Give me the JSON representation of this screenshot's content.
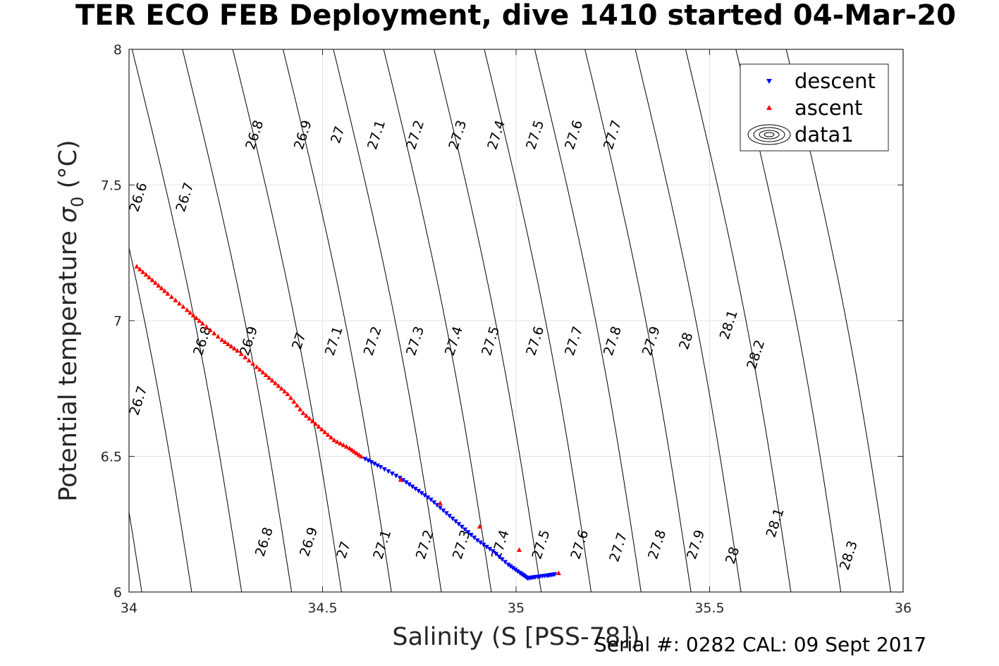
{
  "title": "TER ECO FEB Deployment, dive 1410 started 04-Mar-20",
  "footer": "Serial #: 0282  CAL: 09 Sept 2017",
  "chart_data": {
    "type": "scatter",
    "xlabel": "Salinity (S [PSS-78])",
    "ylabel": "Potential temperature",
    "ylabel_symbol": "σ",
    "ylabel_subscript": "0",
    "ylabel_unit": "(°C)",
    "xlim": [
      34,
      36
    ],
    "ylim": [
      6,
      8
    ],
    "xticks": [
      "34",
      "34.5",
      "35",
      "35.5",
      "36"
    ],
    "yticks": [
      "6",
      "6.5",
      "7",
      "7.5",
      "8"
    ],
    "grid": true,
    "legend_position": "top-right",
    "legend": [
      "descent",
      "ascent",
      "data1"
    ],
    "colors": {
      "descent": "#0000ff",
      "ascent": "#ff0000",
      "contour": "#000000",
      "grid": "#e3e3e3",
      "axis": "#262626"
    },
    "series": [
      {
        "name": "descent",
        "marker": "down-triangle",
        "color": "#0000ff",
        "points": [
          [
            34.61,
            6.49
          ],
          [
            34.65,
            6.46
          ],
          [
            34.7,
            6.42
          ],
          [
            34.74,
            6.38
          ],
          [
            34.78,
            6.34
          ],
          [
            34.82,
            6.29
          ],
          [
            34.86,
            6.24
          ],
          [
            34.9,
            6.19
          ],
          [
            34.94,
            6.15
          ],
          [
            34.98,
            6.1
          ],
          [
            35.01,
            6.07
          ],
          [
            35.03,
            6.05
          ],
          [
            35.05,
            6.055
          ],
          [
            35.08,
            6.06
          ],
          [
            35.1,
            6.065
          ]
        ]
      },
      {
        "name": "ascent",
        "marker": "up-triangle",
        "color": "#ff0000",
        "points": [
          [
            34.02,
            7.2
          ],
          [
            34.06,
            7.15
          ],
          [
            34.1,
            7.1
          ],
          [
            34.15,
            7.04
          ],
          [
            34.19,
            6.99
          ],
          [
            34.24,
            6.93
          ],
          [
            34.28,
            6.89
          ],
          [
            34.33,
            6.83
          ],
          [
            34.37,
            6.78
          ],
          [
            34.41,
            6.73
          ],
          [
            34.45,
            6.66
          ],
          [
            34.49,
            6.61
          ],
          [
            34.53,
            6.56
          ],
          [
            34.57,
            6.53
          ],
          [
            34.6,
            6.5
          ],
          [
            35.11,
            6.07
          ]
        ]
      }
    ],
    "contours": {
      "levels": [
        "26.6",
        "26.7",
        "26.8",
        "26.9",
        "27",
        "27.1",
        "27.2",
        "27.3",
        "27.4",
        "27.5",
        "27.6",
        "27.7",
        "27.8",
        "27.9",
        "28",
        "28.1",
        "28.2",
        "28.3"
      ],
      "level_values": [
        26.6,
        26.7,
        26.8,
        26.9,
        27.0,
        27.1,
        27.2,
        27.3,
        27.4,
        27.5,
        27.6,
        27.7,
        27.8,
        27.9,
        28.0,
        28.1,
        28.2,
        28.3
      ],
      "salinity_at_temp_6": [
        33.775,
        33.904,
        34.033,
        34.162,
        34.291,
        34.42,
        34.549,
        34.678,
        34.807,
        34.936,
        35.065,
        35.194,
        35.323,
        35.452,
        35.581,
        35.71,
        35.839,
        35.968
      ],
      "salinity_at_temp_8": [
        33.488,
        33.618,
        33.748,
        33.878,
        34.008,
        34.138,
        34.268,
        34.398,
        34.528,
        34.658,
        34.788,
        34.918,
        35.048,
        35.178,
        35.308,
        35.438,
        35.568,
        35.698
      ],
      "labels": [
        {
          "text": "26.6",
          "s": 34.07,
          "t": 7.45
        },
        {
          "text": "26.7",
          "s": 34.31,
          "t": 7.45
        },
        {
          "text": "26.8",
          "s": 34.67,
          "t": 7.68
        },
        {
          "text": "26.9",
          "s": 34.92,
          "t": 7.68
        },
        {
          "text": "27",
          "s": 35.1,
          "t": 7.68
        },
        {
          "text": "27.1",
          "s": 35.3,
          "t": 7.68
        },
        {
          "text": "27.2",
          "s": 35.5,
          "t": 7.68
        },
        {
          "text": "27.3",
          "s": 35.72,
          "t": 7.68
        },
        {
          "text": "27.4",
          "s": 35.92,
          "t": 7.68
        },
        {
          "text": "27.5",
          "s": 36.12,
          "t": 7.68
        },
        {
          "text": "27.6",
          "s": 36.32,
          "t": 7.68
        },
        {
          "text": "27.7",
          "s": 36.52,
          "t": 7.68
        },
        {
          "text": "26.7",
          "s": 34.07,
          "t": 6.7
        },
        {
          "text": "26.8",
          "s": 34.4,
          "t": 6.92
        },
        {
          "text": "26.9",
          "s": 34.64,
          "t": 6.92
        },
        {
          "text": "27",
          "s": 34.9,
          "t": 6.92
        },
        {
          "text": "27.1",
          "s": 35.08,
          "t": 6.92
        },
        {
          "text": "27.2",
          "s": 35.28,
          "t": 6.92
        },
        {
          "text": "27.3",
          "s": 35.5,
          "t": 6.92
        },
        {
          "text": "27.4",
          "s": 35.7,
          "t": 6.92
        },
        {
          "text": "27.5",
          "s": 35.89,
          "t": 6.92
        },
        {
          "text": "27.6",
          "s": 36.12,
          "t": 6.92
        },
        {
          "text": "27.7",
          "s": 36.32,
          "t": 6.92
        },
        {
          "text": "27.8",
          "s": 36.52,
          "t": 6.92
        },
        {
          "text": "27.9",
          "s": 36.72,
          "t": 6.92
        },
        {
          "text": "28",
          "s": 36.9,
          "t": 6.92
        },
        {
          "text": "28.1",
          "s": 37.12,
          "t": 6.98
        },
        {
          "text": "28.2",
          "s": 37.26,
          "t": 6.87
        },
        {
          "text": "26.8",
          "s": 34.72,
          "t": 6.18
        },
        {
          "text": "26.9",
          "s": 34.95,
          "t": 6.18
        },
        {
          "text": "27",
          "s": 35.13,
          "t": 6.15
        },
        {
          "text": "27.1",
          "s": 35.33,
          "t": 6.17
        },
        {
          "text": "27.2",
          "s": 35.55,
          "t": 6.17
        },
        {
          "text": "27.3",
          "s": 35.74,
          "t": 6.17
        },
        {
          "text": "27.4",
          "s": 35.94,
          "t": 6.17
        },
        {
          "text": "27.5",
          "s": 36.15,
          "t": 6.17
        },
        {
          "text": "27.6",
          "s": 36.35,
          "t": 6.17
        },
        {
          "text": "27.7",
          "s": 36.55,
          "t": 6.16
        },
        {
          "text": "27.8",
          "s": 36.75,
          "t": 6.17
        },
        {
          "text": "27.9",
          "s": 36.95,
          "t": 6.17
        },
        {
          "text": "28",
          "s": 37.14,
          "t": 6.13
        },
        {
          "text": "28.1",
          "s": 37.36,
          "t": 6.25
        },
        {
          "text": "28.3",
          "s": 37.74,
          "t": 6.13
        }
      ]
    }
  }
}
